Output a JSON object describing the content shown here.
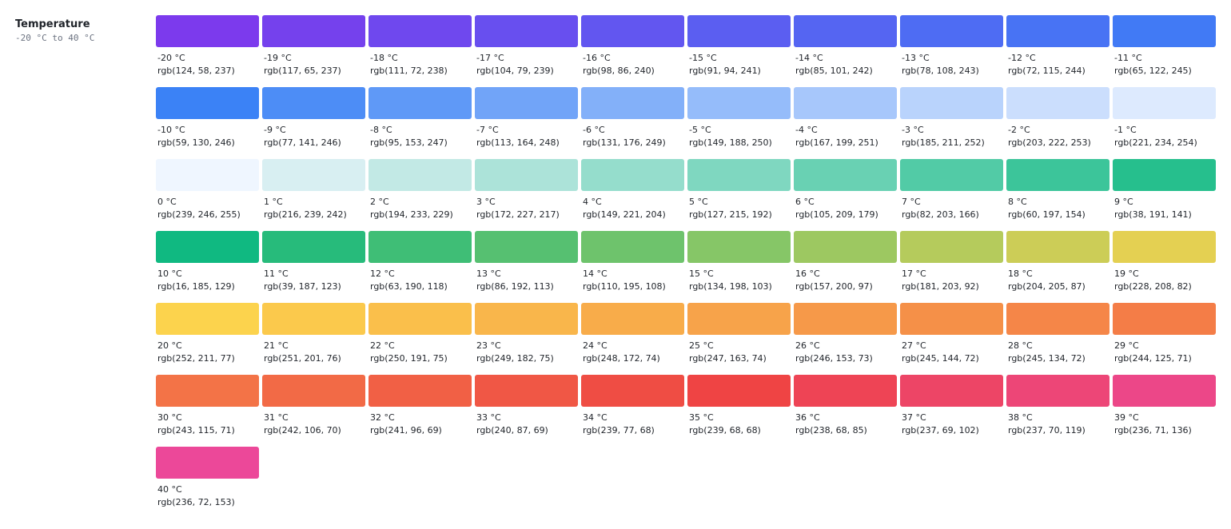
{
  "header": {
    "title": "Temperature",
    "range": "-20 °C to 40 °C"
  },
  "swatches": [
    {
      "label": "-20 °C",
      "rgb": "rgb(124, 58, 237)"
    },
    {
      "label": "-19 °C",
      "rgb": "rgb(117, 65, 237)"
    },
    {
      "label": "-18 °C",
      "rgb": "rgb(111, 72, 238)"
    },
    {
      "label": "-17 °C",
      "rgb": "rgb(104, 79, 239)"
    },
    {
      "label": "-16 °C",
      "rgb": "rgb(98, 86, 240)"
    },
    {
      "label": "-15 °C",
      "rgb": "rgb(91, 94, 241)"
    },
    {
      "label": "-14 °C",
      "rgb": "rgb(85, 101, 242)"
    },
    {
      "label": "-13 °C",
      "rgb": "rgb(78, 108, 243)"
    },
    {
      "label": "-12 °C",
      "rgb": "rgb(72, 115, 244)"
    },
    {
      "label": "-11 °C",
      "rgb": "rgb(65, 122, 245)"
    },
    {
      "label": "-10 °C",
      "rgb": "rgb(59, 130, 246)"
    },
    {
      "label": "-9 °C",
      "rgb": "rgb(77, 141, 246)"
    },
    {
      "label": "-8 °C",
      "rgb": "rgb(95, 153, 247)"
    },
    {
      "label": "-7 °C",
      "rgb": "rgb(113, 164, 248)"
    },
    {
      "label": "-6 °C",
      "rgb": "rgb(131, 176, 249)"
    },
    {
      "label": "-5 °C",
      "rgb": "rgb(149, 188, 250)"
    },
    {
      "label": "-4 °C",
      "rgb": "rgb(167, 199, 251)"
    },
    {
      "label": "-3 °C",
      "rgb": "rgb(185, 211, 252)"
    },
    {
      "label": "-2 °C",
      "rgb": "rgb(203, 222, 253)"
    },
    {
      "label": "-1 °C",
      "rgb": "rgb(221, 234, 254)"
    },
    {
      "label": "0 °C",
      "rgb": "rgb(239, 246, 255)"
    },
    {
      "label": "1 °C",
      "rgb": "rgb(216, 239, 242)"
    },
    {
      "label": "2 °C",
      "rgb": "rgb(194, 233, 229)"
    },
    {
      "label": "3 °C",
      "rgb": "rgb(172, 227, 217)"
    },
    {
      "label": "4 °C",
      "rgb": "rgb(149, 221, 204)"
    },
    {
      "label": "5 °C",
      "rgb": "rgb(127, 215, 192)"
    },
    {
      "label": "6 °C",
      "rgb": "rgb(105, 209, 179)"
    },
    {
      "label": "7 °C",
      "rgb": "rgb(82, 203, 166)"
    },
    {
      "label": "8 °C",
      "rgb": "rgb(60, 197, 154)"
    },
    {
      "label": "9 °C",
      "rgb": "rgb(38, 191, 141)"
    },
    {
      "label": "10 °C",
      "rgb": "rgb(16, 185, 129)"
    },
    {
      "label": "11 °C",
      "rgb": "rgb(39, 187, 123)"
    },
    {
      "label": "12 °C",
      "rgb": "rgb(63, 190, 118)"
    },
    {
      "label": "13 °C",
      "rgb": "rgb(86, 192, 113)"
    },
    {
      "label": "14 °C",
      "rgb": "rgb(110, 195, 108)"
    },
    {
      "label": "15 °C",
      "rgb": "rgb(134, 198, 103)"
    },
    {
      "label": "16 °C",
      "rgb": "rgb(157, 200, 97)"
    },
    {
      "label": "17 °C",
      "rgb": "rgb(181, 203, 92)"
    },
    {
      "label": "18 °C",
      "rgb": "rgb(204, 205, 87)"
    },
    {
      "label": "19 °C",
      "rgb": "rgb(228, 208, 82)"
    },
    {
      "label": "20 °C",
      "rgb": "rgb(252, 211, 77)"
    },
    {
      "label": "21 °C",
      "rgb": "rgb(251, 201, 76)"
    },
    {
      "label": "22 °C",
      "rgb": "rgb(250, 191, 75)"
    },
    {
      "label": "23 °C",
      "rgb": "rgb(249, 182, 75)"
    },
    {
      "label": "24 °C",
      "rgb": "rgb(248, 172, 74)"
    },
    {
      "label": "25 °C",
      "rgb": "rgb(247, 163, 74)"
    },
    {
      "label": "26 °C",
      "rgb": "rgb(246, 153, 73)"
    },
    {
      "label": "27 °C",
      "rgb": "rgb(245, 144, 72)"
    },
    {
      "label": "28 °C",
      "rgb": "rgb(245, 134, 72)"
    },
    {
      "label": "29 °C",
      "rgb": "rgb(244, 125, 71)"
    },
    {
      "label": "30 °C",
      "rgb": "rgb(243, 115, 71)"
    },
    {
      "label": "31 °C",
      "rgb": "rgb(242, 106, 70)"
    },
    {
      "label": "32 °C",
      "rgb": "rgb(241, 96, 69)"
    },
    {
      "label": "33 °C",
      "rgb": "rgb(240, 87, 69)"
    },
    {
      "label": "34 °C",
      "rgb": "rgb(239, 77, 68)"
    },
    {
      "label": "35 °C",
      "rgb": "rgb(239, 68, 68)"
    },
    {
      "label": "36 °C",
      "rgb": "rgb(238, 68, 85)"
    },
    {
      "label": "37 °C",
      "rgb": "rgb(237, 69, 102)"
    },
    {
      "label": "38 °C",
      "rgb": "rgb(237, 70, 119)"
    },
    {
      "label": "39 °C",
      "rgb": "rgb(236, 71, 136)"
    },
    {
      "label": "40 °C",
      "rgb": "rgb(236, 72, 153)"
    }
  ]
}
